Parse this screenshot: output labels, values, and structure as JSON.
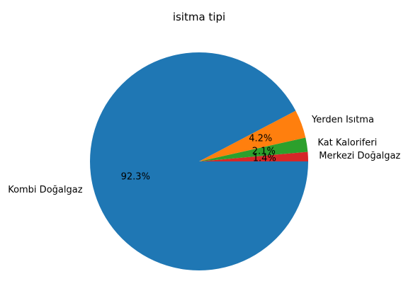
{
  "chart_data": {
    "type": "pie",
    "title": "isitma tipi",
    "slices": [
      {
        "label": "Merkezi Doğalgaz",
        "value": 1.4,
        "pct_label": "1.4%",
        "color": "#d62728"
      },
      {
        "label": "Kat Kaloriferi",
        "value": 2.1,
        "pct_label": "2.1%",
        "color": "#2ca02c"
      },
      {
        "label": "Yerden Isıtma",
        "value": 4.2,
        "pct_label": "4.2%",
        "color": "#ff7f0e"
      },
      {
        "label": "Kombi Doğalgaz",
        "value": 92.3,
        "pct_label": "92.3%",
        "color": "#1f77b4"
      }
    ],
    "start_angle_deg": 0,
    "direction": "counterclockwise",
    "legend": "none"
  }
}
